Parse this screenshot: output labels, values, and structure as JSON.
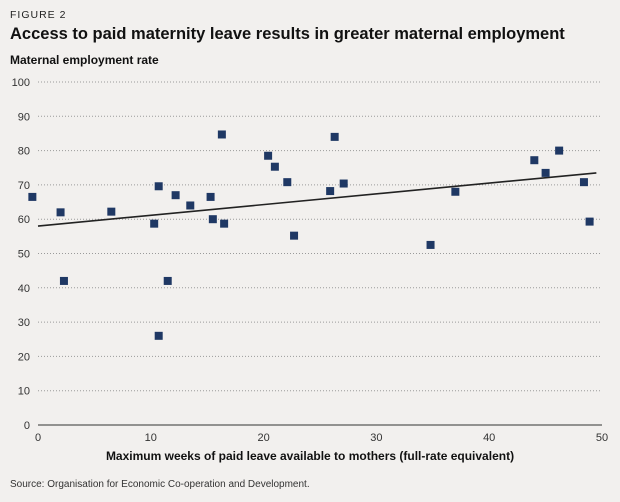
{
  "figure_label": "FIGURE 2",
  "chart_data": {
    "type": "scatter",
    "title": "Access to paid maternity leave results in greater maternal employment",
    "ylabel": "Maternal employment rate",
    "xlabel": "Maximum weeks of paid leave available to mothers (full-rate equivalent)",
    "xlim": [
      0,
      50
    ],
    "ylim": [
      0,
      100
    ],
    "xticks": [
      0,
      10,
      20,
      30,
      40,
      50
    ],
    "yticks": [
      0,
      10,
      20,
      30,
      40,
      50,
      60,
      70,
      80,
      90,
      100
    ],
    "grid": "horizontal-dotted",
    "marker_color": "#1f3864",
    "trendline": {
      "x": [
        0,
        49.5
      ],
      "y": [
        58,
        73.5
      ]
    },
    "points": [
      {
        "x": -0.5,
        "y": 66.5
      },
      {
        "x": 2.0,
        "y": 62.0
      },
      {
        "x": 2.3,
        "y": 42.0
      },
      {
        "x": 6.5,
        "y": 62.2
      },
      {
        "x": 10.3,
        "y": 58.7
      },
      {
        "x": 10.7,
        "y": 69.6
      },
      {
        "x": 10.7,
        "y": 26.0
      },
      {
        "x": 11.5,
        "y": 42.0
      },
      {
        "x": 12.2,
        "y": 67.0
      },
      {
        "x": 13.5,
        "y": 64.0
      },
      {
        "x": 15.3,
        "y": 66.5
      },
      {
        "x": 15.5,
        "y": 60.0
      },
      {
        "x": 16.3,
        "y": 84.7
      },
      {
        "x": 16.5,
        "y": 58.7
      },
      {
        "x": 20.4,
        "y": 78.5
      },
      {
        "x": 21.0,
        "y": 75.3
      },
      {
        "x": 22.1,
        "y": 70.8
      },
      {
        "x": 22.7,
        "y": 55.2
      },
      {
        "x": 25.9,
        "y": 68.2
      },
      {
        "x": 26.3,
        "y": 84.0
      },
      {
        "x": 27.1,
        "y": 70.4
      },
      {
        "x": 34.8,
        "y": 52.5
      },
      {
        "x": 37.0,
        "y": 68.0
      },
      {
        "x": 44.0,
        "y": 77.2
      },
      {
        "x": 45.0,
        "y": 73.5
      },
      {
        "x": 46.2,
        "y": 80.0
      },
      {
        "x": 48.4,
        "y": 70.8
      },
      {
        "x": 48.9,
        "y": 59.3
      }
    ]
  },
  "source": "Source: Organisation for Economic Co-operation and Development."
}
